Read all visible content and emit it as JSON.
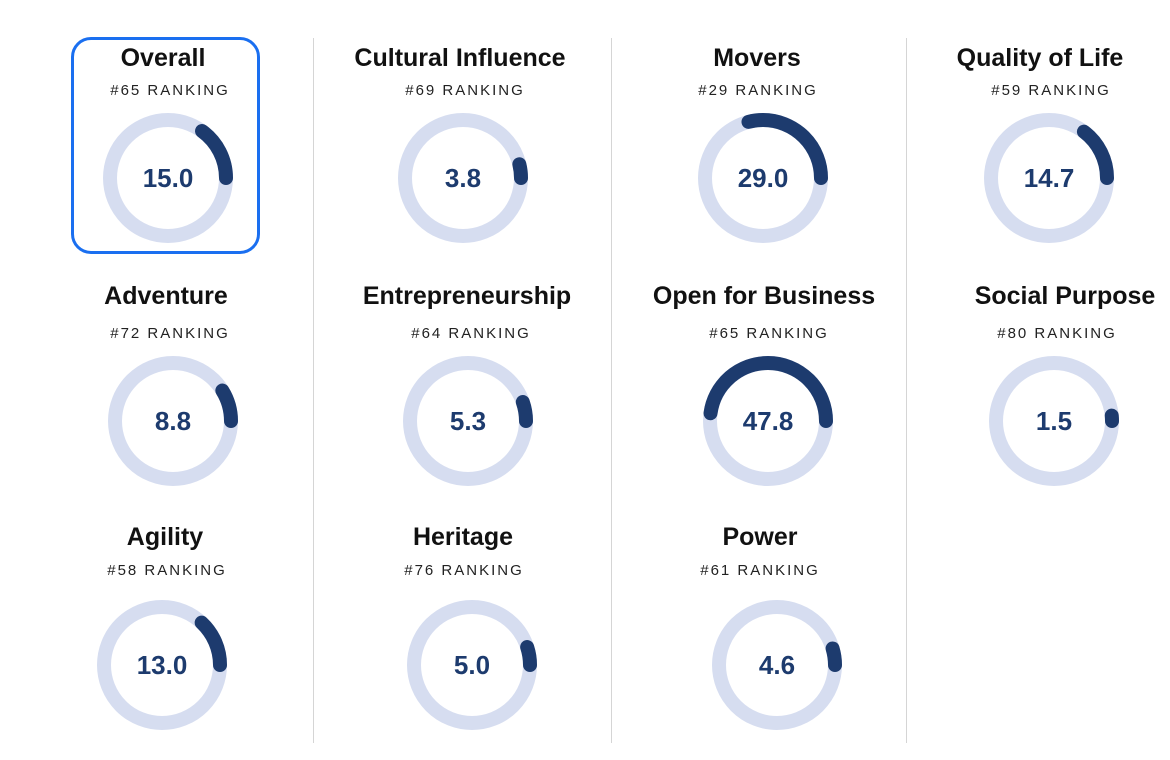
{
  "rank_prefix": "#",
  "rank_suffix": " RANKING",
  "colors": {
    "track": "#d6ddf0",
    "arc": "#1d3b6e",
    "selected_border": "#1a6ff0"
  },
  "cards": [
    {
      "id": "overall",
      "title": "Overall",
      "rank": "65",
      "score": "15.0",
      "fraction": 0.15,
      "selected": true
    },
    {
      "id": "cultural-influence",
      "title": "Cultural Influence",
      "rank": "69",
      "score": "3.8",
      "fraction": 0.038
    },
    {
      "id": "movers",
      "title": "Movers",
      "rank": "29",
      "score": "29.0",
      "fraction": 0.29
    },
    {
      "id": "quality-of-life",
      "title": "Quality of Life",
      "rank": "59",
      "score": "14.7",
      "fraction": 0.147
    },
    {
      "id": "adventure",
      "title": "Adventure",
      "rank": "72",
      "score": "8.8",
      "fraction": 0.088
    },
    {
      "id": "entrepreneurship",
      "title": "Entrepreneurship",
      "rank": "64",
      "score": "5.3",
      "fraction": 0.053
    },
    {
      "id": "open-for-business",
      "title": "Open for Business",
      "rank": "65",
      "score": "47.8",
      "fraction": 0.478
    },
    {
      "id": "social-purpose",
      "title": "Social Purpose",
      "rank": "80",
      "score": "1.5",
      "fraction": 0.015
    },
    {
      "id": "agility",
      "title": "Agility",
      "rank": "58",
      "score": "13.0",
      "fraction": 0.13
    },
    {
      "id": "heritage",
      "title": "Heritage",
      "rank": "76",
      "score": "5.0",
      "fraction": 0.05
    },
    {
      "id": "power",
      "title": "Power",
      "rank": "61",
      "score": "4.6",
      "fraction": 0.046
    }
  ]
}
